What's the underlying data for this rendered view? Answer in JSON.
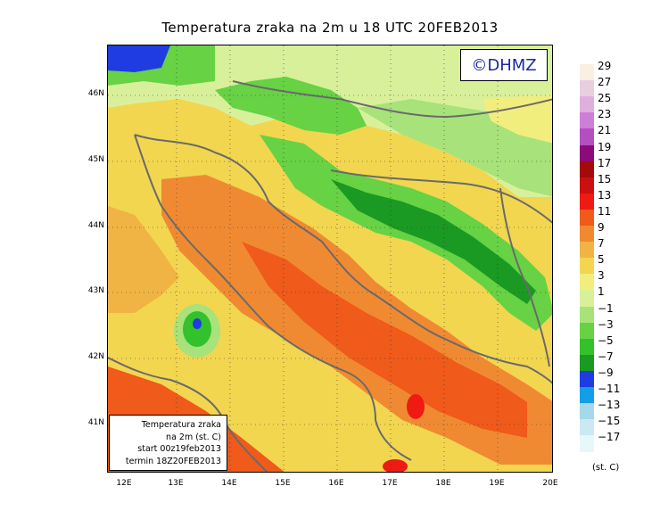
{
  "title": "Temperatura zraka na 2m u 18 UTC 20FEB2013",
  "credit": "©DHMZ",
  "info_box": {
    "line1": "Temperatura zraka",
    "line2": "na 2m (st. C)",
    "line3": "start 00z19feb2013",
    "line4": "termin 18Z20FEB2013"
  },
  "lat_labels": [
    "46N",
    "45N",
    "44N",
    "43N",
    "42N",
    "41N"
  ],
  "lon_labels": [
    "12E",
    "13E",
    "14E",
    "15E",
    "16E",
    "17E",
    "18E",
    "19E",
    "20E"
  ],
  "legend": {
    "units": "(st. C)",
    "levels": [
      "29",
      "27",
      "25",
      "23",
      "21",
      "19",
      "17",
      "15",
      "13",
      "11",
      "9",
      "7",
      "5",
      "3",
      "1",
      "−1",
      "−3",
      "−5",
      "−7",
      "−9",
      "−11",
      "−13",
      "−15",
      "−17"
    ],
    "colors": [
      "#fbeee3",
      "#e8cfe0",
      "#dfb0de",
      "#cc7fd6",
      "#b44fc0",
      "#8c0a7a",
      "#a40a0a",
      "#cc1010",
      "#f01a14",
      "#f05a1a",
      "#f08a32",
      "#f0b445",
      "#f2d650",
      "#f1ee7e",
      "#d8f09a",
      "#a8e27a",
      "#66d244",
      "#33c12c",
      "#1a9a22",
      "#1e3ce0",
      "#149ee8",
      "#a4d8ea",
      "#cbe9f2",
      "#e8f7fa"
    ]
  }
}
